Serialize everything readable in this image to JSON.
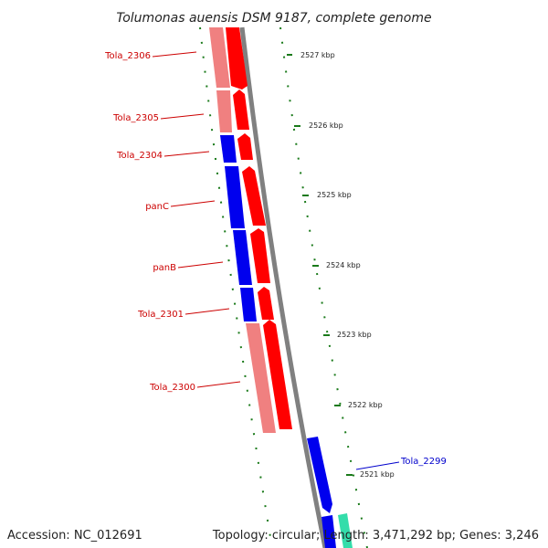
{
  "title": "Tolumonas auensis DSM 9187, complete genome",
  "footer": {
    "accession": "Accession: NC_012691",
    "summary": "Topology: circular; Length: 3,471,292 bp; Genes: 3,246"
  },
  "colors": {
    "forward_gene": "#ff0000",
    "forward_gene_light": "#f08080",
    "reverse_gene": "#0000ee",
    "other_feature": "#33ddaa",
    "backbone": "#808080",
    "ticks": "#1a7a1a",
    "label_red": "#cc0000",
    "label_blue": "#0000cc"
  },
  "scale_ticks": [
    "2527 kbp",
    "2526 kbp",
    "2525 kbp",
    "2524 kbp",
    "2523 kbp",
    "2522 kbp",
    "2521 kbp"
  ],
  "genes": [
    {
      "name": "Tola_2306",
      "label_color": "red"
    },
    {
      "name": "Tola_2305",
      "label_color": "red"
    },
    {
      "name": "Tola_2304",
      "label_color": "red"
    },
    {
      "name": "panC",
      "label_color": "red"
    },
    {
      "name": "panB",
      "label_color": "red"
    },
    {
      "name": "Tola_2301",
      "label_color": "red"
    },
    {
      "name": "Tola_2300",
      "label_color": "red"
    },
    {
      "name": "Tola_2299",
      "label_color": "blue"
    }
  ]
}
